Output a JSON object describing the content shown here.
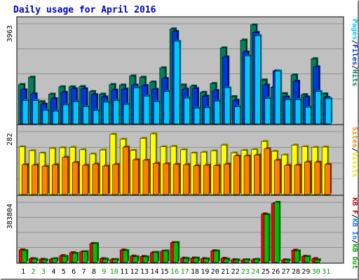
{
  "chart_data": {
    "type": "bar",
    "title": "Daily usage for April 2016",
    "days": [
      "1",
      "2",
      "3",
      "4",
      "5",
      "6",
      "7",
      "8",
      "9",
      "10",
      "11",
      "12",
      "13",
      "14",
      "15",
      "16",
      "17",
      "18",
      "19",
      "20",
      "21",
      "22",
      "23",
      "24",
      "25",
      "26",
      "27",
      "28",
      "29",
      "30",
      "31"
    ],
    "weekend_days": [
      "2",
      "3",
      "9",
      "10",
      "16",
      "17",
      "23",
      "24",
      "30",
      "31"
    ],
    "panels": [
      {
        "id": "hits-files-pages",
        "scale_label": "3963",
        "ymax": 3963,
        "legend": [
          {
            "text": "Pages",
            "color": "#00c8ff"
          },
          {
            "text": "/",
            "color": "#000000"
          },
          {
            "text": "Files",
            "color": "#0038d8"
          },
          {
            "text": "/",
            "color": "#000000"
          },
          {
            "text": "Hits",
            "color": "#00805c"
          }
        ],
        "series": [
          {
            "name": "Hits",
            "color": "#00805c",
            "values": [
              1560,
              1850,
              880,
              1180,
              1470,
              1470,
              1480,
              1280,
              1180,
              1560,
              1540,
              1900,
              1850,
              1660,
              2220,
              3760,
              1540,
              1500,
              1250,
              1600,
              3010,
              1080,
              3320,
              3920,
              1740,
              1460,
              1200,
              1940,
              1160,
              2580,
              1190
            ]
          },
          {
            "name": "Files",
            "color": "#0038d8",
            "values": [
              1350,
              1190,
              780,
              1000,
              1250,
              1390,
              1390,
              1160,
              1070,
              1340,
              1380,
              1540,
              1520,
              1370,
              1800,
              3660,
              1380,
              1400,
              1100,
              1320,
              2650,
              930,
              2850,
              3620,
              1540,
              2100,
              1070,
              1690,
              1070,
              2260,
              1050
            ]
          },
          {
            "name": "Pages",
            "color": "#00c8ff",
            "values": [
              930,
              920,
              540,
              500,
              750,
              880,
              680,
              530,
              860,
              920,
              770,
              1430,
              1100,
              880,
              1280,
              3270,
              1020,
              620,
              640,
              900,
              1430,
              680,
              2690,
              3490,
              1010,
              2090,
              960,
              960,
              660,
              1280,
              1000
            ]
          }
        ]
      },
      {
        "id": "visits-sites",
        "scale_label": "282",
        "ymax": 282,
        "legend": [
          {
            "text": "Sites",
            "color": "#ff8000"
          },
          {
            "text": "/",
            "color": "#000000"
          },
          {
            "text": "Visits",
            "color": "#e8e800"
          }
        ],
        "series": [
          {
            "name": "Visits",
            "color": "#ffff00",
            "values": [
              214,
              197,
              186,
              207,
              210,
              212,
              201,
              182,
              200,
              270,
              248,
              198,
              252,
              272,
              214,
              216,
              201,
              186,
              190,
              196,
              222,
              187,
              198,
              202,
              238,
              194,
              178,
              222,
              215,
              212,
              213
            ]
          },
          {
            "name": "Sites",
            "color": "#ff8000",
            "values": [
              134,
              132,
              127,
              133,
              167,
              144,
              131,
              137,
              128,
              135,
              213,
              156,
              154,
              140,
              138,
              135,
              134,
              129,
              131,
              130,
              137,
              173,
              173,
              177,
              206,
              154,
              131,
              132,
              146,
              145,
              136
            ]
          }
        ]
      },
      {
        "id": "kbytes",
        "scale_label": "383804",
        "ymax": 383804,
        "legend": [
          {
            "text": "KB F",
            "color": "#c80000"
          },
          {
            "text": "/",
            "color": "#000000"
          },
          {
            "text": "KB In",
            "color": "#0080ff"
          },
          {
            "text": "/",
            "color": "#000000"
          },
          {
            "text": "KB Out",
            "color": "#00a800"
          }
        ],
        "series": [
          {
            "name": "KB F",
            "color": "#ff0000",
            "values": [
              81000,
              25000,
              21000,
              21000,
              44000,
              63000,
              68000,
              121000,
              25000,
              19000,
              80000,
              41000,
              39000,
              63000,
              72000,
              127000,
              28000,
              29000,
              25000,
              75000,
              27000,
              18000,
              16000,
              18000,
              310000,
              376000,
              17000,
              79000,
              40000,
              25000,
              0
            ]
          },
          {
            "name": "KB Out",
            "color": "#00c000",
            "values": [
              76000,
              22000,
              17000,
              25000,
              39000,
              58000,
              69000,
              121000,
              21000,
              19000,
              76000,
              37000,
              36000,
              65000,
              74000,
              127000,
              26000,
              28000,
              23000,
              73000,
              22000,
              16000,
              18000,
              20000,
              305000,
              383804,
              16000,
              74000,
              38000,
              17000,
              0
            ]
          }
        ]
      }
    ]
  }
}
